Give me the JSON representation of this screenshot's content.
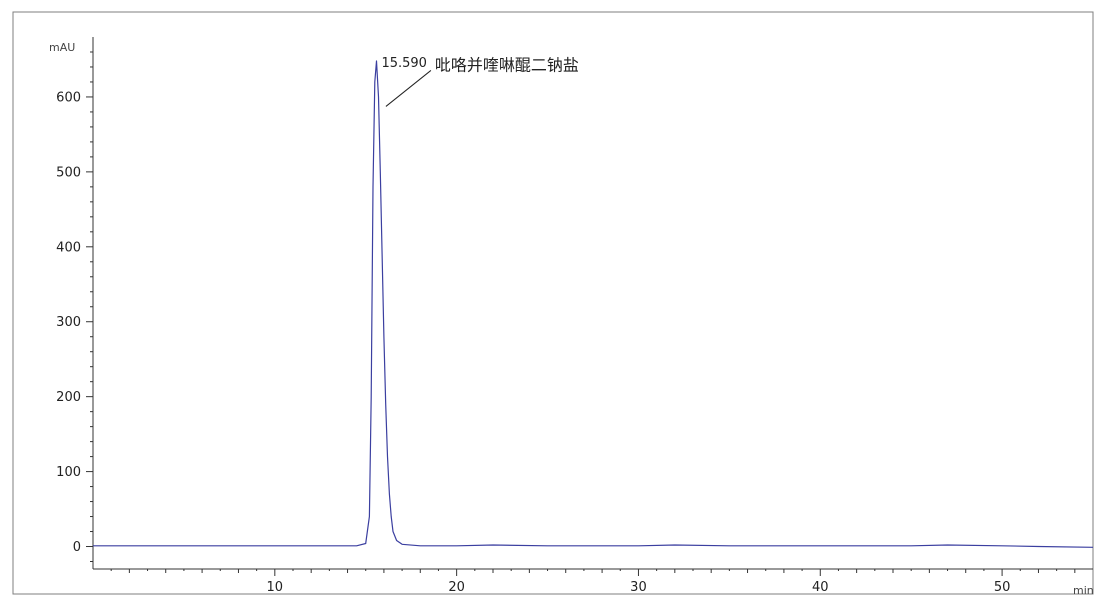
{
  "chart_data": {
    "type": "line",
    "title": "",
    "xlabel": "min",
    "ylabel": "mAU",
    "xlim": [
      0,
      55
    ],
    "ylim": [
      -30,
      680
    ],
    "x_ticks": [
      10,
      20,
      30,
      40,
      50
    ],
    "y_ticks": [
      0,
      100,
      200,
      300,
      400,
      500,
      600
    ],
    "grid": false,
    "series": [
      {
        "color": "#3b3fa0",
        "x": [
          0.0,
          5.0,
          10.0,
          14.5,
          15.0,
          15.2,
          15.3,
          15.4,
          15.5,
          15.59,
          15.7,
          15.8,
          15.9,
          16.0,
          16.1,
          16.2,
          16.3,
          16.4,
          16.5,
          16.7,
          17.0,
          18.0,
          20.0,
          22.0,
          25.0,
          30.0,
          32.0,
          35.0,
          40.0,
          45.0,
          47.0,
          50.0,
          52.0,
          55.0
        ],
        "y": [
          1,
          1,
          1,
          1,
          4,
          40,
          200,
          480,
          620,
          648,
          600,
          500,
          390,
          280,
          190,
          120,
          70,
          40,
          20,
          8,
          3,
          1,
          1,
          2,
          1,
          1,
          2,
          1,
          1,
          1,
          2,
          1,
          0,
          -1
        ]
      }
    ],
    "annotations": [
      {
        "text": "15.590",
        "x": 15.59,
        "y": 648
      },
      {
        "text": "吡咯并喹啉醌二钠盐",
        "x": 16.0,
        "y": 590
      }
    ]
  }
}
